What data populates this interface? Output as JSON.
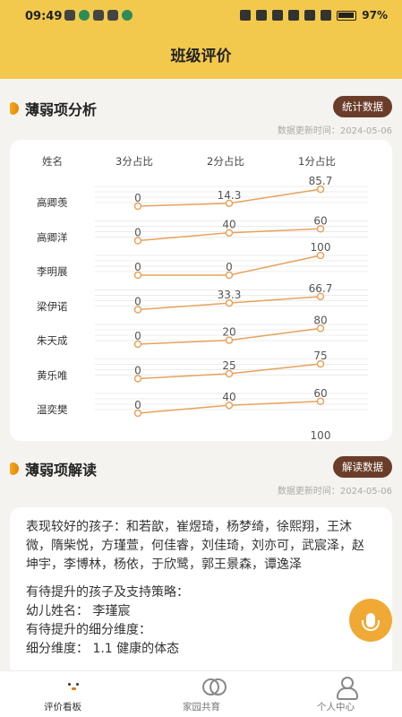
{
  "status_bar": {
    "time": "09:49",
    "battery": "97%"
  },
  "header": {
    "title": "班级评价"
  },
  "section1": {
    "title": "薄弱项分析",
    "button": "统计数据",
    "update_time": "数据更新时间：2024-05-06"
  },
  "chart_data": {
    "type": "line",
    "columns": [
      "姓名",
      "3分占比",
      "2分占比",
      "1分占比"
    ],
    "categories": [
      "3分占比",
      "2分占比",
      "1分占比"
    ],
    "rows": [
      {
        "name": "高卿羡",
        "values": [
          0,
          14.3,
          85.7
        ]
      },
      {
        "name": "高卿洋",
        "values": [
          0,
          40,
          60
        ]
      },
      {
        "name": "李明展",
        "values": [
          0,
          0,
          100
        ]
      },
      {
        "name": "梁伊诺",
        "values": [
          0,
          33.3,
          66.7
        ]
      },
      {
        "name": "朱天成",
        "values": [
          0,
          20,
          80
        ]
      },
      {
        "name": "黄乐唯",
        "values": [
          0,
          25,
          75
        ]
      },
      {
        "name": "温奕樊",
        "values": [
          0,
          40,
          60
        ]
      }
    ],
    "partial_next_row_label": "100",
    "line_color": "#e8a25c"
  },
  "section2": {
    "title": "薄弱项解读",
    "button": "解读数据",
    "update_time": "数据更新时间：2024-05-06"
  },
  "interpretation": {
    "good_children": "表现较好的孩子：和若歆，崔煜琦，杨梦绮，徐熙翔，王沐微，隋柴悦，方瑾萱，何佳睿，刘佳琦，刘亦可，武宸泽，赵坤宇，李博林，杨依，于欣鹭，郭王景森，谭逸泽",
    "improve_title": "有待提升的孩子及支持策略：",
    "child_name": "幼儿姓名：  李瑾宸",
    "dimension_title": "有待提升的细分维度：",
    "dimension": "细分维度：  1.1 健康的体态"
  },
  "tabbar": {
    "tabs": [
      {
        "label": "评价看板",
        "icon": "chick-icon"
      },
      {
        "label": "家园共育",
        "icon": "rings-icon"
      },
      {
        "label": "个人中心",
        "icon": "person-icon"
      }
    ]
  }
}
